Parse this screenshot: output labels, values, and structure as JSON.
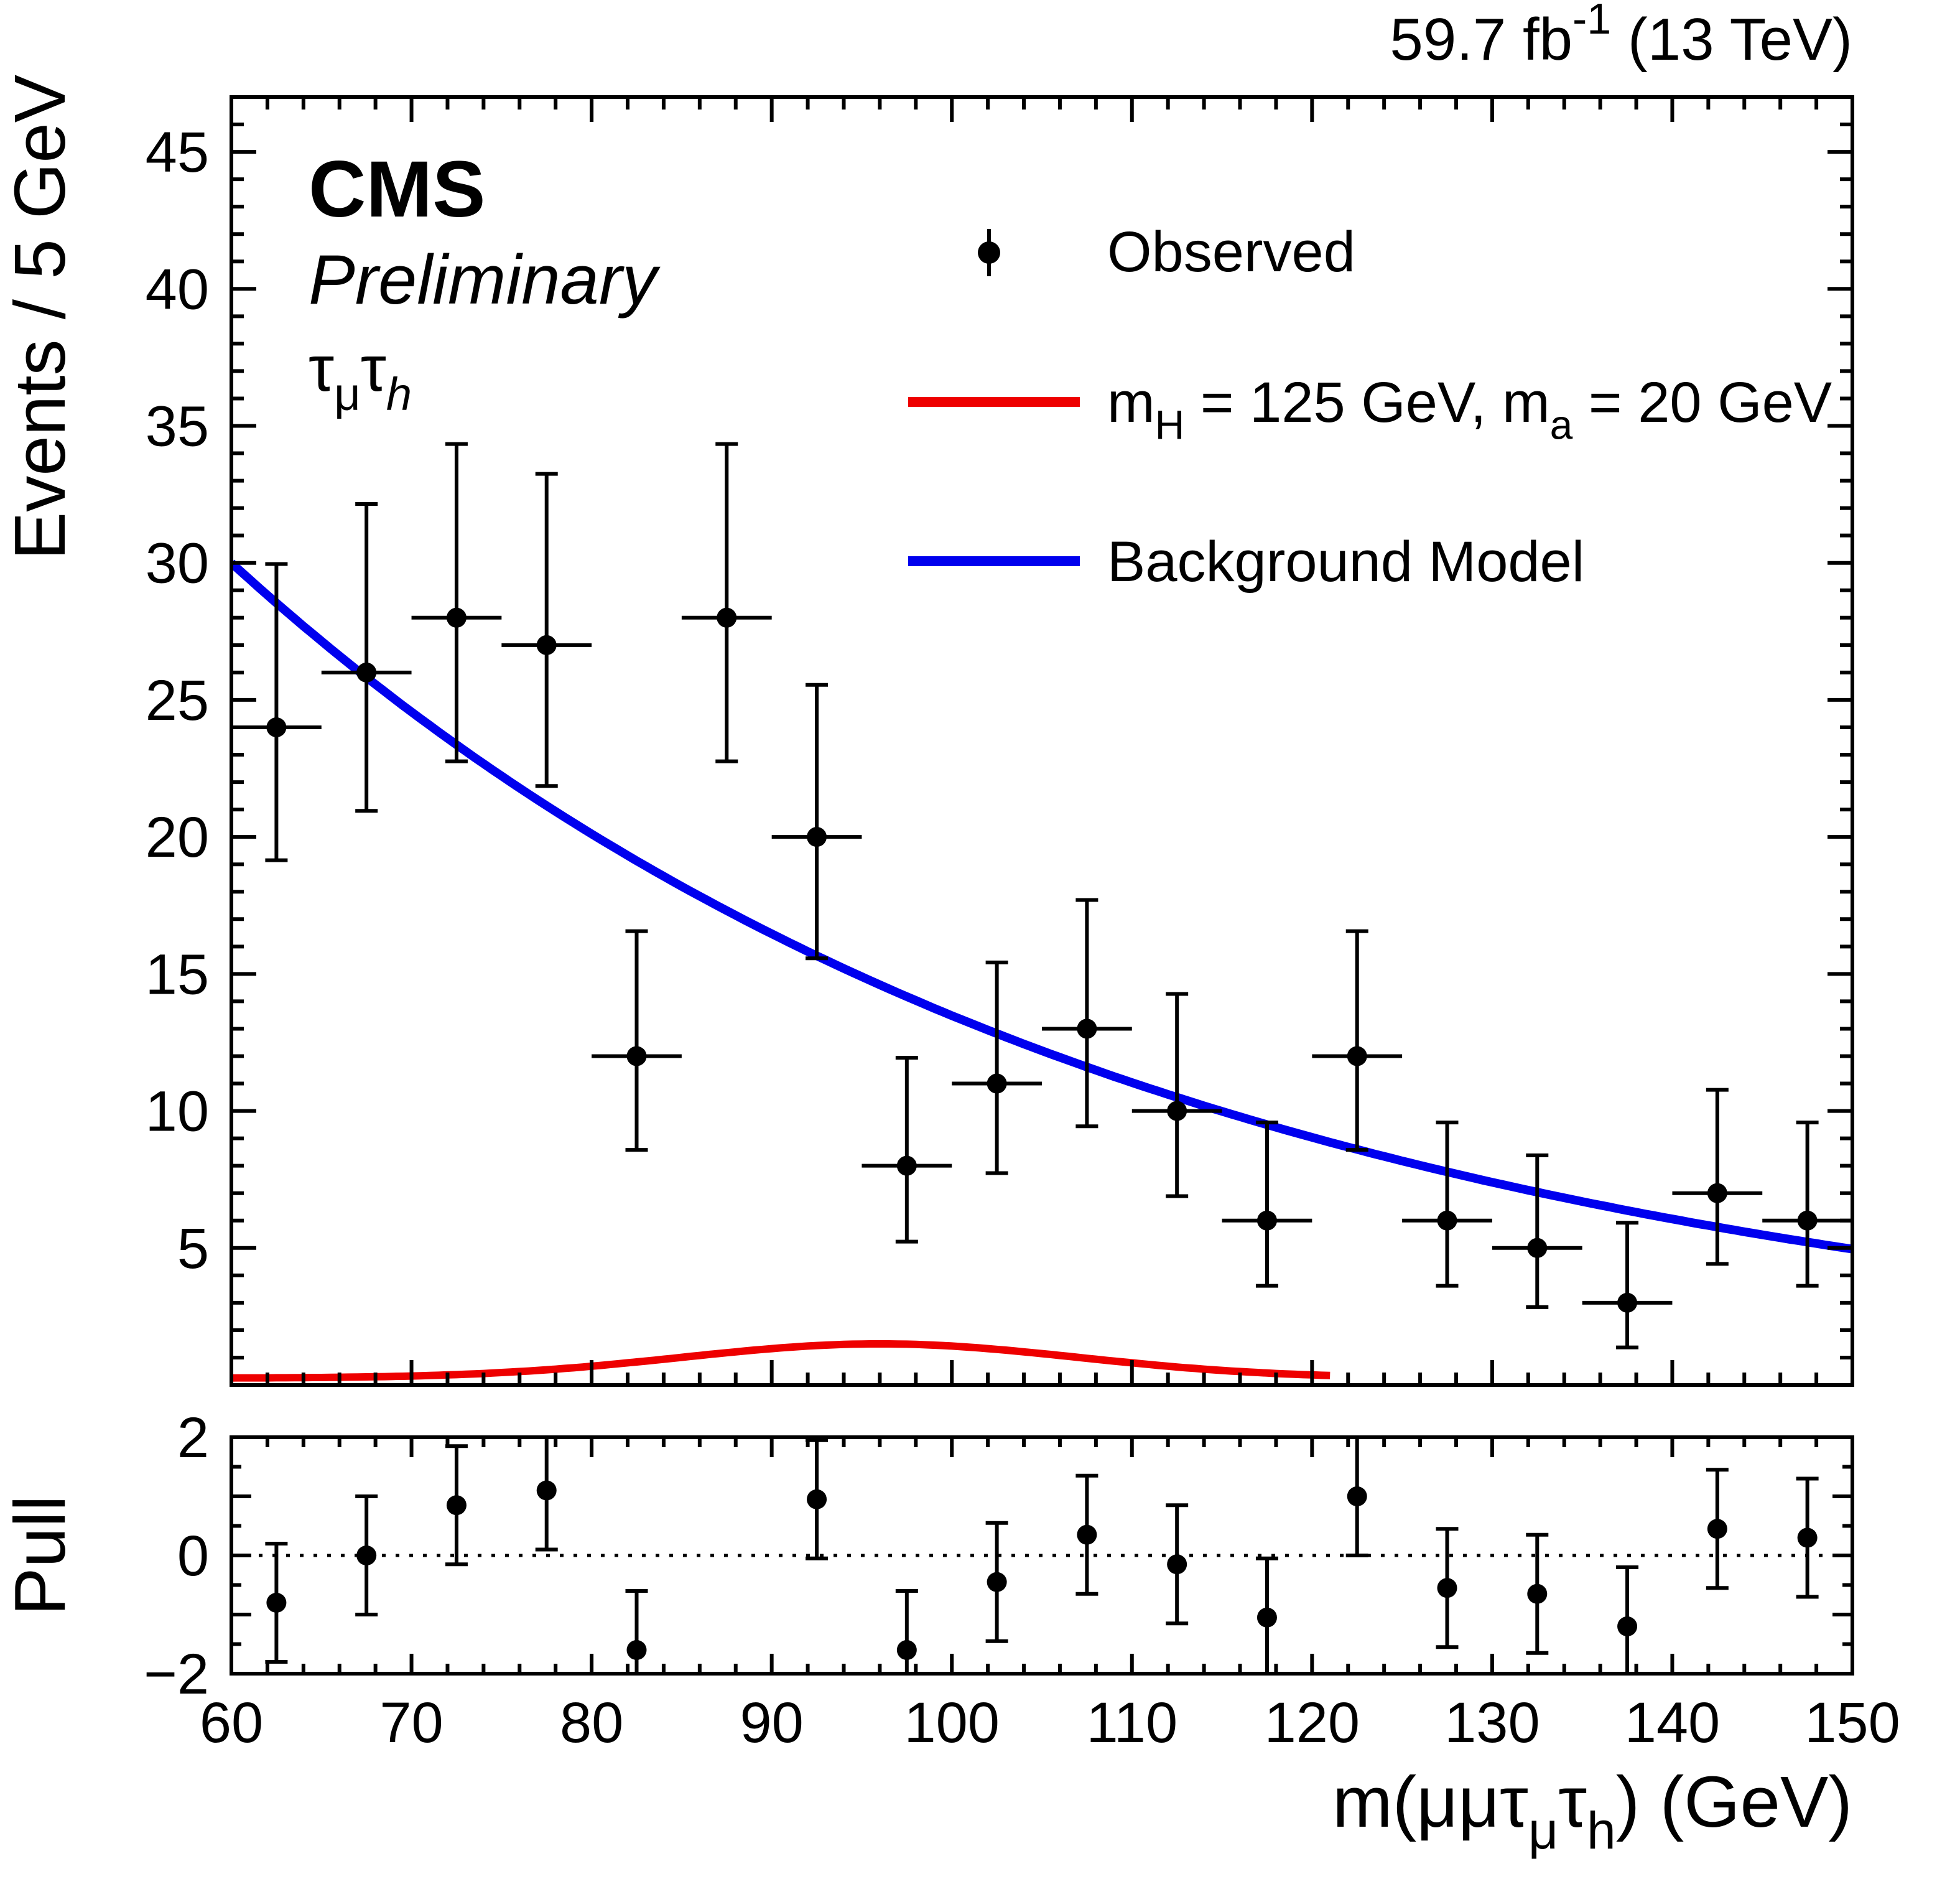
{
  "labels": {
    "cms": "CMS",
    "preliminary": "Preliminary",
    "channel_parts": [
      {
        "t": "τ"
      },
      {
        "t": "μ",
        "sub": true
      },
      {
        "t": "τ"
      },
      {
        "t": "h",
        "sub": true,
        "i": true
      }
    ],
    "lumi_parts": [
      {
        "t": "59.7 fb"
      },
      {
        "t": "-1",
        "sup": true
      },
      {
        "t": " (13 TeV)"
      }
    ],
    "y_axis_title": "Events / 5 GeV",
    "pull_axis_title": "Pull",
    "x_axis_title_parts": [
      {
        "t": "m(μμτ"
      },
      {
        "t": "μ",
        "sub": true
      },
      {
        "t": "τ"
      },
      {
        "t": "h",
        "sub": true
      },
      {
        "t": ") (GeV)"
      }
    ]
  },
  "legend": {
    "observed_label": "Observed",
    "signal_label_parts": [
      {
        "t": "m"
      },
      {
        "t": "H",
        "sub": true
      },
      {
        "t": " = 125 GeV, m"
      },
      {
        "t": "a",
        "sub": true
      },
      {
        "t": " = 20 GeV"
      }
    ],
    "background_label": "Background Model"
  },
  "colors": {
    "observed": "#000000",
    "signal": "#ee0000",
    "background": "#0000ee",
    "frame": "#000000"
  },
  "chart_data": {
    "type": "composite",
    "panels": [
      {
        "name": "main",
        "ylabel": "Events / 5 GeV",
        "xlim": [
          60,
          150
        ],
        "ylim": [
          0,
          47
        ],
        "x_major_ticks": [
          60,
          70,
          80,
          90,
          100,
          110,
          120,
          130,
          140,
          150
        ],
        "x_minor_step": 2,
        "y_major_ticks": [
          0,
          5,
          10,
          15,
          20,
          25,
          30,
          35,
          40,
          45
        ],
        "y_labeled_ticks": [
          5,
          10,
          15,
          20,
          25,
          30,
          35,
          40,
          45
        ],
        "y_minor_step": 1,
        "series": [
          {
            "name": "Observed",
            "type": "scatter",
            "color_key": "observed",
            "bin_half_width": 2.5,
            "x": [
              62.5,
              67.5,
              72.5,
              77.5,
              82.5,
              87.5,
              92.5,
              97.5,
              102.5,
              107.5,
              112.5,
              117.5,
              122.5,
              127.5,
              132.5,
              137.5,
              142.5,
              147.5
            ],
            "y": [
              24,
              26,
              28,
              27,
              12,
              28,
              20,
              8,
              11,
              13,
              10,
              6,
              12,
              6,
              5,
              3,
              7,
              6
            ],
            "yerr_low": [
              4.85,
              5.05,
              5.24,
              5.14,
              3.42,
              5.24,
              4.43,
              2.77,
              3.27,
              3.56,
              3.11,
              2.38,
              3.42,
              2.38,
              2.16,
              1.63,
              2.58,
              2.38
            ],
            "yerr_high": [
              5.96,
              6.15,
              6.34,
              6.25,
              4.56,
              6.34,
              5.55,
              3.94,
              4.42,
              4.7,
              4.27,
              3.58,
              4.56,
              3.58,
              3.38,
              2.92,
              3.77,
              3.58
            ]
          },
          {
            "name": "Background Model",
            "type": "line",
            "color_key": "background",
            "model": "exponential",
            "params": {
              "y_at_xmin": 30,
              "xmin": 60,
              "decay_constant": 50
            },
            "x_range": [
              60,
              150
            ],
            "line_width": 7,
            "sample_x": [
              60,
              70,
              80,
              90,
              100,
              110,
              120,
              130,
              140,
              150
            ],
            "sample_y": [
              30,
              24.6,
              20.1,
              16.5,
              13.5,
              11,
              9,
              7.4,
              6.1,
              5
            ]
          },
          {
            "name": "mH = 125 GeV, ma = 20 GeV",
            "type": "line",
            "color_key": "signal",
            "model": "gaussian_plus_baseline",
            "params": {
              "baseline": 0.25,
              "amplitude": 1.25,
              "mean": 96,
              "sigma": 11
            },
            "x_range": [
              60,
              121
            ],
            "line_width": 6,
            "sample_x": [
              60,
              70,
              80,
              90,
              95,
              100,
              110,
              120,
              121
            ],
            "sample_y": [
              0.26,
              0.33,
              0.68,
              1.33,
              1.49,
              1.42,
              0.81,
              0.34,
              0.33
            ]
          }
        ]
      },
      {
        "name": "pull",
        "ylabel": "Pull",
        "xlim": [
          60,
          150
        ],
        "ylim": [
          -2,
          2
        ],
        "y_major_ticks": [
          -2,
          -1,
          0,
          1,
          2
        ],
        "y_labeled_ticks": [
          -2,
          0,
          2
        ],
        "y_minor_step": 0.5,
        "zero_line": true,
        "series": [
          {
            "name": "Pull",
            "type": "scatter",
            "color_key": "observed",
            "yerr": 1,
            "x": [
              62.5,
              67.5,
              72.5,
              77.5,
              82.5,
              92.5,
              97.5,
              102.5,
              107.5,
              112.5,
              117.5,
              122.5,
              127.5,
              132.5,
              137.5,
              142.5,
              147.5
            ],
            "y": [
              -0.8,
              0,
              0.85,
              1.1,
              -1.6,
              0.95,
              -1.6,
              -0.45,
              0.35,
              -0.15,
              -1.05,
              1,
              -0.55,
              -0.65,
              -1.2,
              0.45,
              0.3
            ]
          }
        ]
      }
    ]
  }
}
